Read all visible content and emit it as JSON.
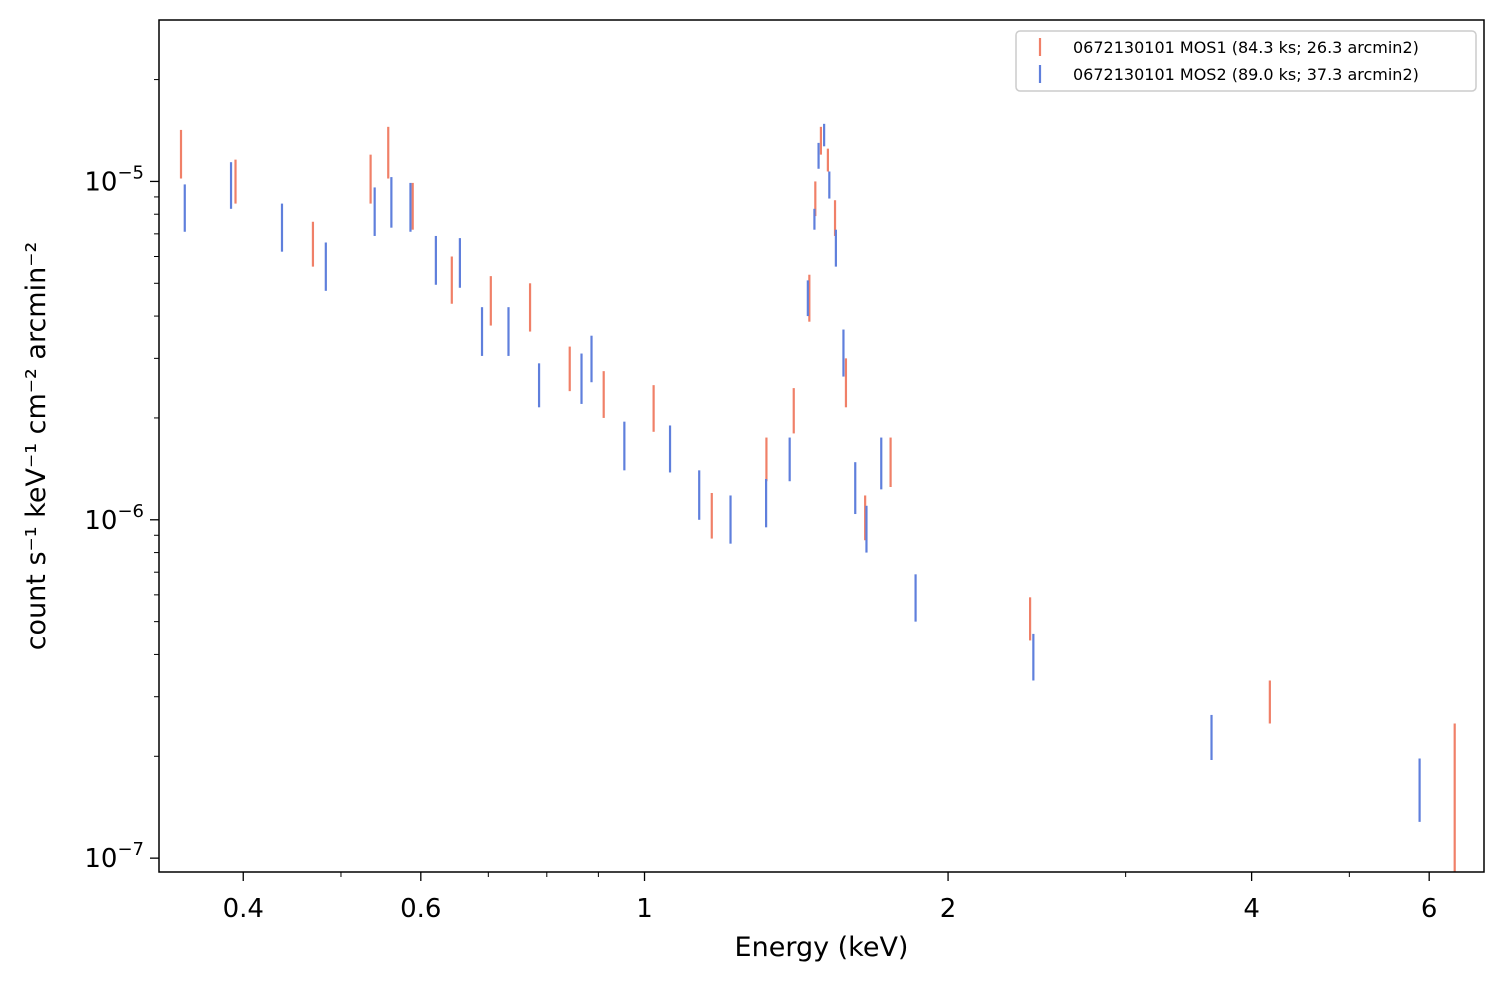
{
  "chart_data": {
    "type": "scatter",
    "error_bars": true,
    "xlabel": "Energy (keV)",
    "ylabel": "count s⁻¹ keV⁻¹ cm⁻² arcmin⁻²",
    "x_scale": "log",
    "y_scale": "log",
    "xlim": [
      0.33,
      6.8
    ],
    "ylim": [
      9.1e-08,
      3e-05
    ],
    "x_ticks": [
      {
        "value": 0.4,
        "label": "0.4"
      },
      {
        "value": 0.6,
        "label": "0.6"
      },
      {
        "value": 1,
        "label": "1"
      },
      {
        "value": 2,
        "label": "2"
      },
      {
        "value": 4,
        "label": "4"
      },
      {
        "value": 6,
        "label": "6"
      }
    ],
    "y_ticks": [
      {
        "value": 1e-07,
        "base": "10",
        "exp": "−7"
      },
      {
        "value": 1e-06,
        "base": "10",
        "exp": "−6"
      },
      {
        "value": 1e-05,
        "base": "10",
        "exp": "−5"
      }
    ],
    "grid": false,
    "legend_position": "top-right",
    "series": [
      {
        "name": "0672130101 MOS1 (84.3 ks; 26.3 arcmin2)",
        "color": "#f08068",
        "points": [
          {
            "x": 0.347,
            "lo": 1.02e-05,
            "hi": 1.42e-05
          },
          {
            "x": 0.393,
            "lo": 8.6e-06,
            "hi": 1.16e-05
          },
          {
            "x": 0.469,
            "lo": 5.6e-06,
            "hi": 7.6e-06
          },
          {
            "x": 0.535,
            "lo": 8.6e-06,
            "hi": 1.2e-05
          },
          {
            "x": 0.557,
            "lo": 1.02e-05,
            "hi": 1.45e-05
          },
          {
            "x": 0.589,
            "lo": 7.2e-06,
            "hi": 9.9e-06
          },
          {
            "x": 0.644,
            "lo": 4.35e-06,
            "hi": 6e-06
          },
          {
            "x": 0.704,
            "lo": 3.75e-06,
            "hi": 5.25e-06
          },
          {
            "x": 0.77,
            "lo": 3.6e-06,
            "hi": 5e-06
          },
          {
            "x": 0.843,
            "lo": 2.4e-06,
            "hi": 3.25e-06
          },
          {
            "x": 0.911,
            "lo": 2e-06,
            "hi": 2.75e-06
          },
          {
            "x": 1.021,
            "lo": 1.82e-06,
            "hi": 2.5e-06
          },
          {
            "x": 1.166,
            "lo": 8.8e-07,
            "hi": 1.2e-06
          },
          {
            "x": 1.321,
            "lo": 1.3e-06,
            "hi": 1.75e-06
          },
          {
            "x": 1.406,
            "lo": 1.8e-06,
            "hi": 2.45e-06
          },
          {
            "x": 1.457,
            "lo": 3.85e-06,
            "hi": 5.3e-06
          },
          {
            "x": 1.477,
            "lo": 7.9e-06,
            "hi": 1e-05
          },
          {
            "x": 1.496,
            "lo": 1.2e-05,
            "hi": 1.45e-05
          },
          {
            "x": 1.52,
            "lo": 1.07e-05,
            "hi": 1.25e-05
          },
          {
            "x": 1.545,
            "lo": 6.9e-06,
            "hi": 8.8e-06
          },
          {
            "x": 1.584,
            "lo": 2.15e-06,
            "hi": 3e-06
          },
          {
            "x": 1.655,
            "lo": 8.7e-07,
            "hi": 1.18e-06
          },
          {
            "x": 1.754,
            "lo": 1.25e-06,
            "hi": 1.75e-06
          },
          {
            "x": 2.412,
            "lo": 4.4e-07,
            "hi": 5.9e-07
          },
          {
            "x": 4.17,
            "lo": 2.5e-07,
            "hi": 3.35e-07
          },
          {
            "x": 6.36,
            "lo": 9.1e-08,
            "hi": 2.5e-07
          }
        ]
      },
      {
        "name": "0672130101 MOS2 (89.0 ks; 37.3 arcmin2)",
        "color": "#5f7fdc",
        "points": [
          {
            "x": 0.35,
            "lo": 7.1e-06,
            "hi": 9.8e-06
          },
          {
            "x": 0.389,
            "lo": 8.3e-06,
            "hi": 1.14e-05
          },
          {
            "x": 0.437,
            "lo": 6.2e-06,
            "hi": 8.6e-06
          },
          {
            "x": 0.483,
            "lo": 4.75e-06,
            "hi": 6.6e-06
          },
          {
            "x": 0.54,
            "lo": 6.9e-06,
            "hi": 9.6e-06
          },
          {
            "x": 0.561,
            "lo": 7.3e-06,
            "hi": 1.03e-05
          },
          {
            "x": 0.586,
            "lo": 7.1e-06,
            "hi": 9.9e-06
          },
          {
            "x": 0.621,
            "lo": 4.95e-06,
            "hi": 6.9e-06
          },
          {
            "x": 0.656,
            "lo": 4.85e-06,
            "hi": 6.8e-06
          },
          {
            "x": 0.69,
            "lo": 3.05e-06,
            "hi": 4.25e-06
          },
          {
            "x": 0.733,
            "lo": 3.05e-06,
            "hi": 4.25e-06
          },
          {
            "x": 0.786,
            "lo": 2.15e-06,
            "hi": 2.9e-06
          },
          {
            "x": 0.866,
            "lo": 2.2e-06,
            "hi": 3.1e-06
          },
          {
            "x": 0.886,
            "lo": 2.55e-06,
            "hi": 3.5e-06
          },
          {
            "x": 0.955,
            "lo": 1.4e-06,
            "hi": 1.95e-06
          },
          {
            "x": 1.06,
            "lo": 1.38e-06,
            "hi": 1.9e-06
          },
          {
            "x": 1.133,
            "lo": 1e-06,
            "hi": 1.4e-06
          },
          {
            "x": 1.217,
            "lo": 8.5e-07,
            "hi": 1.18e-06
          },
          {
            "x": 1.32,
            "lo": 9.5e-07,
            "hi": 1.32e-06
          },
          {
            "x": 1.393,
            "lo": 1.3e-06,
            "hi": 1.75e-06
          },
          {
            "x": 1.452,
            "lo": 4e-06,
            "hi": 5.1e-06
          },
          {
            "x": 1.474,
            "lo": 7.2e-06,
            "hi": 8.3e-06
          },
          {
            "x": 1.488,
            "lo": 1.09e-05,
            "hi": 1.3e-05
          },
          {
            "x": 1.507,
            "lo": 1.27e-05,
            "hi": 1.48e-05
          },
          {
            "x": 1.525,
            "lo": 8.9e-06,
            "hi": 1.07e-05
          },
          {
            "x": 1.548,
            "lo": 5.6e-06,
            "hi": 7.2e-06
          },
          {
            "x": 1.575,
            "lo": 2.65e-06,
            "hi": 3.65e-06
          },
          {
            "x": 1.618,
            "lo": 1.04e-06,
            "hi": 1.48e-06
          },
          {
            "x": 1.66,
            "lo": 8e-07,
            "hi": 1.1e-06
          },
          {
            "x": 1.717,
            "lo": 1.23e-06,
            "hi": 1.75e-06
          },
          {
            "x": 1.857,
            "lo": 5e-07,
            "hi": 6.9e-07
          },
          {
            "x": 2.43,
            "lo": 3.35e-07,
            "hi": 4.6e-07
          },
          {
            "x": 3.65,
            "lo": 1.95e-07,
            "hi": 2.65e-07
          },
          {
            "x": 5.87,
            "lo": 1.28e-07,
            "hi": 1.97e-07
          }
        ]
      }
    ]
  }
}
